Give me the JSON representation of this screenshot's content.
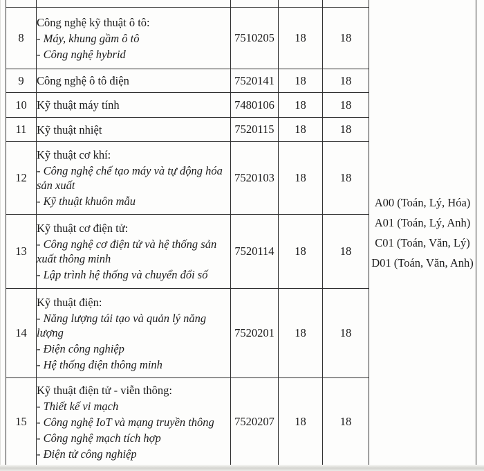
{
  "colors": {
    "border": "#2f2f2f",
    "text": "#1b1b1b",
    "page_background": "#fdfdfc",
    "cutoff_strip": "#d4d4d0"
  },
  "table": {
    "rows": [
      {
        "no": "8",
        "title": "Công nghệ kỹ thuật ô tô:",
        "items": [
          "- Máy, khung gầm ô tô",
          "- Công nghệ hybrid"
        ],
        "code": "7510205",
        "score1": "18",
        "score2": "18"
      },
      {
        "no": "9",
        "title": "Công nghệ ô tô điện",
        "items": [],
        "code": "7520141",
        "score1": "18",
        "score2": "18"
      },
      {
        "no": "10",
        "title": "Kỹ thuật máy tính",
        "items": [],
        "code": "7480106",
        "score1": "18",
        "score2": "18"
      },
      {
        "no": "11",
        "title": "Kỹ thuật nhiệt",
        "items": [],
        "code": "7520115",
        "score1": "18",
        "score2": "18"
      },
      {
        "no": "12",
        "title": "Kỹ thuật cơ khí:",
        "items": [
          "- Công nghệ chế tạo máy và tự động hóa sản xuất",
          "- Kỹ thuật khuôn mẫu"
        ],
        "code": "7520103",
        "score1": "18",
        "score2": "18"
      },
      {
        "no": "13",
        "title": "Kỹ thuật cơ điện tử:",
        "items": [
          "- Công nghệ cơ điện tử và hệ thống sản xuất thông minh",
          "- Lập trình hệ thống và chuyển đổi số"
        ],
        "code": "7520114",
        "score1": "18",
        "score2": "18"
      },
      {
        "no": "14",
        "title": "Kỹ thuật điện:",
        "items": [
          "- Năng lượng tái tạo và quản lý năng lượng",
          "- Điện công nghiệp",
          "- Hệ thống điện thông minh"
        ],
        "code": "7520201",
        "score1": "18",
        "score2": "18"
      },
      {
        "no": "15",
        "title": "Kỹ thuật điện tử - viễn thông:",
        "items": [
          "- Thiết kế vi mạch",
          "- Công nghệ IoT và mạng truyền thông",
          "- Công nghệ mạch tích hợp",
          "- Điện tử công nghiệp"
        ],
        "code": "7520207",
        "score1": "18",
        "score2": "18"
      }
    ],
    "subject_combinations": [
      "A00 (Toán, Lý, Hóa)",
      "A01 (Toán, Lý, Anh)",
      "C01 (Toán, Văn, Lý)",
      "D01 (Toán, Văn, Anh)"
    ]
  }
}
